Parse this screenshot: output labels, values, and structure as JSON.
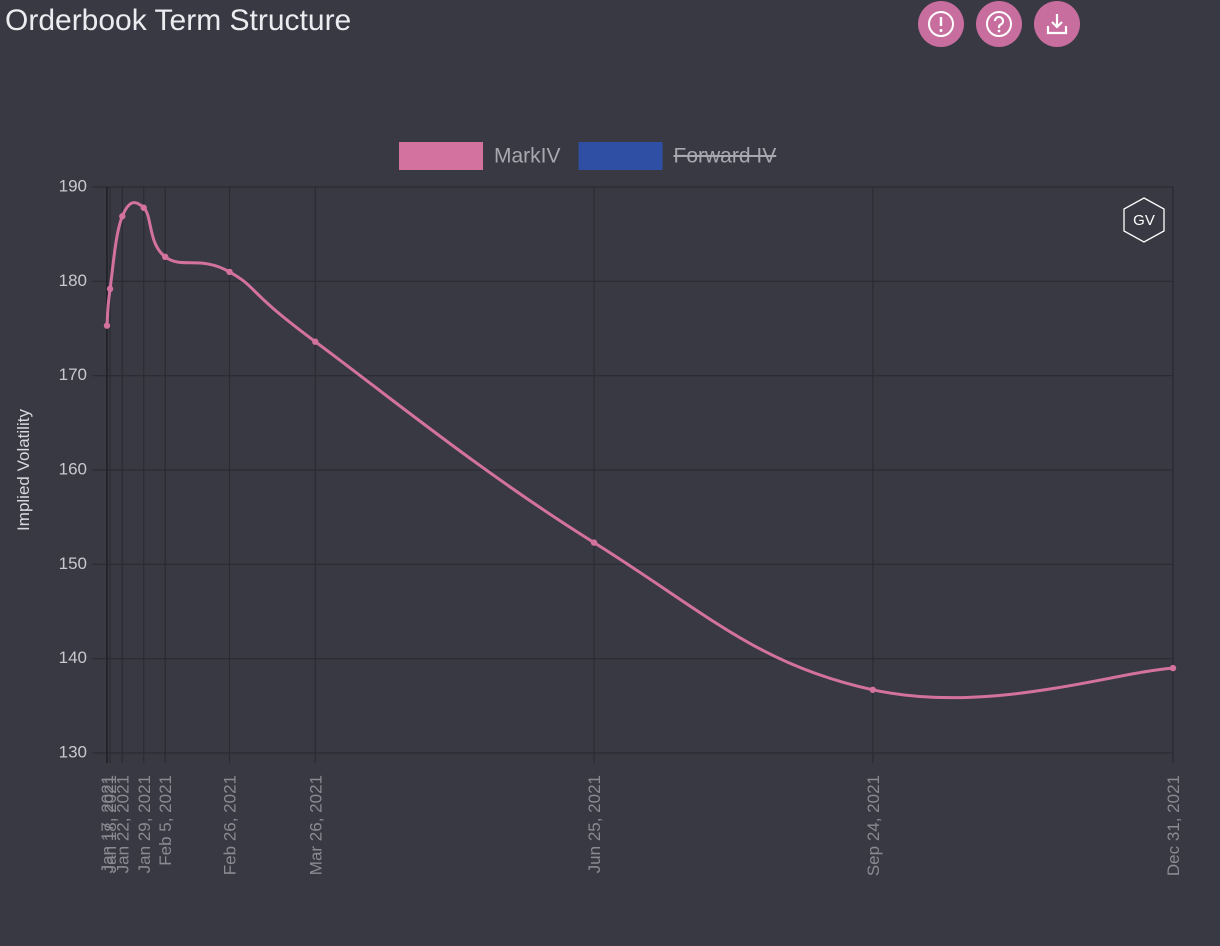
{
  "header": {
    "title": "Orderbook Term Structure"
  },
  "chart_data": {
    "type": "line",
    "y_label": "Implied Volatility",
    "watermark": "GV",
    "x": [
      "Jan 17, 2021",
      "Jan 18, 2021",
      "Jan 22, 2021",
      "Jan 29, 2021",
      "Feb 5, 2021",
      "Feb 26, 2021",
      "Mar 26, 2021",
      "Jun 25, 2021",
      "Sep 24, 2021",
      "Dec 31, 2021"
    ],
    "xlim": [
      "Jan 17, 2021",
      "Dec 31, 2021"
    ],
    "series": [
      {
        "name": "MarkIV",
        "color": "#d4729f",
        "values": [
          175.3,
          179.2,
          186.9,
          187.8,
          182.6,
          181.0,
          173.6,
          152.3,
          136.7,
          139.0
        ]
      },
      {
        "name": "Forward IV",
        "color": "#2f4fa5",
        "hidden": true
      }
    ],
    "ylim": [
      130,
      190
    ],
    "yticks": [
      130,
      140,
      150,
      160,
      170,
      180,
      190
    ],
    "grid": true,
    "legend": "top"
  }
}
